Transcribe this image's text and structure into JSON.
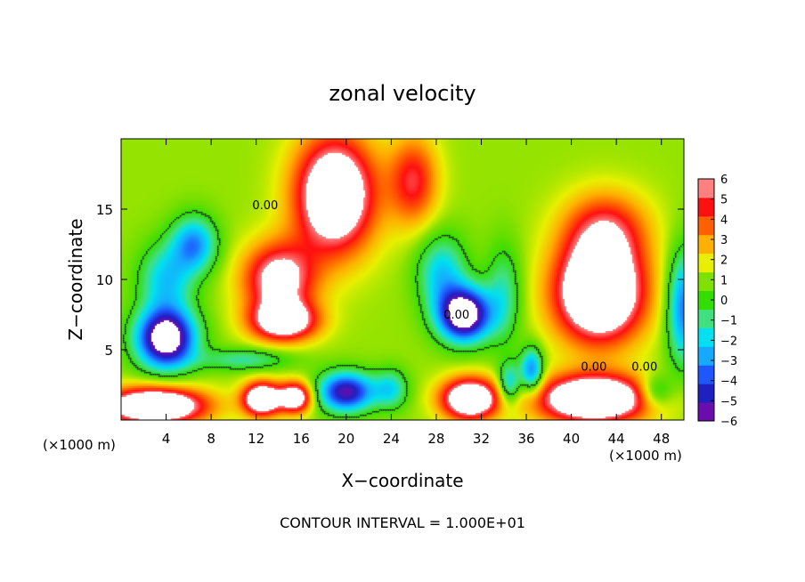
{
  "chart_data": {
    "type": "heatmap",
    "title": "zonal velocity",
    "xlabel": "X−coordinate",
    "ylabel": "Z−coordinate",
    "x_unit_left": "(×1000 m)",
    "x_unit_right": "(×1000 m)",
    "footer": "CONTOUR INTERVAL = 1.000E+01",
    "xlim": [
      0,
      50
    ],
    "ylim": [
      0,
      20
    ],
    "x_ticks": [
      4,
      8,
      12,
      16,
      20,
      24,
      28,
      32,
      36,
      40,
      44,
      48
    ],
    "x_tick_labels": [
      "4",
      "8",
      "12",
      "16",
      "20",
      "24",
      "28",
      "32",
      "36",
      "40",
      "44",
      "48"
    ],
    "y_ticks": [
      5,
      10,
      15
    ],
    "y_tick_labels": [
      "5",
      "10",
      "15"
    ],
    "colorbar": {
      "min": -6,
      "max": 6,
      "tick_labels": [
        "6",
        "5",
        "4",
        "3",
        "2",
        "1",
        "0",
        "−1",
        "−2",
        "−3",
        "−4",
        "−5",
        "−6"
      ],
      "colors": [
        "#6a0dad",
        "#2020c0",
        "#1e56ff",
        "#16aaff",
        "#00e0f0",
        "#40e080",
        "#33dd00",
        "#80e000",
        "#e8f000",
        "#ffb000",
        "#ff6000",
        "#ff1010",
        "#ff8080"
      ]
    },
    "contour_label": "0.00",
    "contour_label_positions": [
      {
        "x": 12.8,
        "y": 15.0
      },
      {
        "x": 29.8,
        "y": 7.2
      },
      {
        "x": 42.0,
        "y": 3.5
      },
      {
        "x": 46.5,
        "y": 3.5
      }
    ],
    "features": [
      {
        "x": 19,
        "y": 16,
        "sx": 3.6,
        "sy": 4.2,
        "v": 8
      },
      {
        "x": 14,
        "y": 10,
        "sx": 3.2,
        "sy": 2.6,
        "v": 6
      },
      {
        "x": 14.5,
        "y": 7,
        "sx": 3.0,
        "sy": 1.4,
        "v": 6.5
      },
      {
        "x": 26,
        "y": 17,
        "sx": 2.2,
        "sy": 3.2,
        "v": 4
      },
      {
        "x": 4.0,
        "y": 5.8,
        "sx": 2.6,
        "sy": 2.1,
        "v": -9
      },
      {
        "x": 6.5,
        "y": 12.5,
        "sx": 2.0,
        "sy": 2.0,
        "v": -4.5
      },
      {
        "x": 4.0,
        "y": 10.0,
        "sx": 2.4,
        "sy": 2.5,
        "v": -3.5
      },
      {
        "x": 30.5,
        "y": 7.5,
        "sx": 2.3,
        "sy": 1.9,
        "v": -9
      },
      {
        "x": 28.5,
        "y": 10.5,
        "sx": 2.2,
        "sy": 2.7,
        "v": -3.5
      },
      {
        "x": 34.0,
        "y": 9.0,
        "sx": 1.6,
        "sy": 3.5,
        "v": -2.5
      },
      {
        "x": 42.5,
        "y": 9.0,
        "sx": 4.0,
        "sy": 3.5,
        "v": 9
      },
      {
        "x": 43.0,
        "y": 13.5,
        "sx": 3.8,
        "sy": 2.8,
        "v": 4
      },
      {
        "x": 50.0,
        "y": 8.0,
        "sx": 1.5,
        "sy": 4.0,
        "v": -5
      },
      {
        "x": 3.0,
        "y": 1.0,
        "sx": 4.5,
        "sy": 1.3,
        "v": 9
      },
      {
        "x": 12.5,
        "y": 1.5,
        "sx": 1.7,
        "sy": 1.2,
        "v": 8
      },
      {
        "x": 15.5,
        "y": 1.6,
        "sx": 1.5,
        "sy": 1.1,
        "v": 7
      },
      {
        "x": 20.0,
        "y": 2.0,
        "sx": 2.5,
        "sy": 1.4,
        "v": -7
      },
      {
        "x": 24.0,
        "y": 2.2,
        "sx": 1.5,
        "sy": 1.4,
        "v": -3
      },
      {
        "x": 31.0,
        "y": 1.5,
        "sx": 2.6,
        "sy": 1.5,
        "v": 8
      },
      {
        "x": 42.0,
        "y": 1.5,
        "sx": 5.0,
        "sy": 1.7,
        "v": 9
      },
      {
        "x": 36.5,
        "y": 3.5,
        "sx": 1.0,
        "sy": 1.6,
        "v": -5
      },
      {
        "x": 34.5,
        "y": 2.5,
        "sx": 1.0,
        "sy": 1.5,
        "v": -4
      },
      {
        "x": 47.5,
        "y": 2.0,
        "sx": 1.5,
        "sy": 1.2,
        "v": -3
      },
      {
        "x": 11.0,
        "y": 4.3,
        "sx": 4.0,
        "sy": 0.8,
        "v": -2.5
      }
    ]
  }
}
